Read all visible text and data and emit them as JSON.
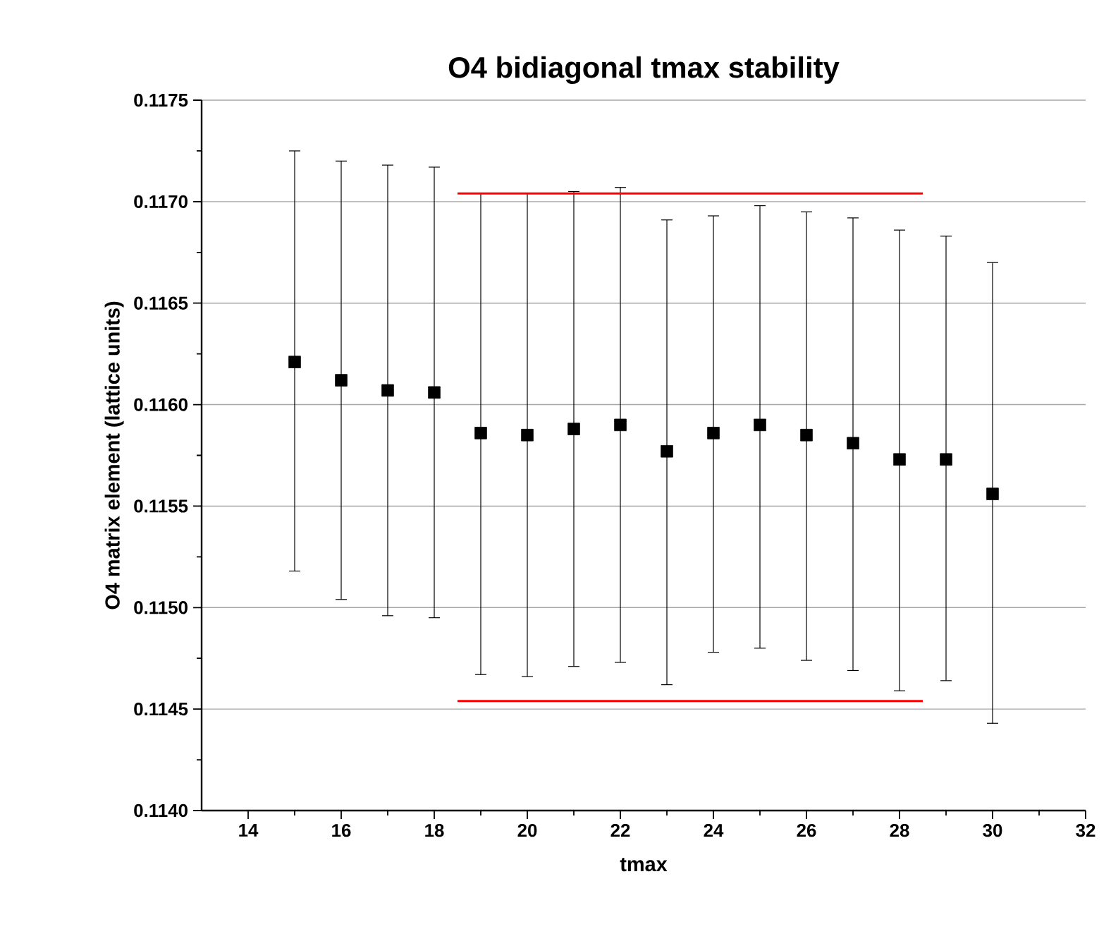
{
  "chart_data": {
    "type": "scatter",
    "title": "O4 bidiagonal tmax stability",
    "xlabel": "tmax",
    "ylabel": "O4 matrix element (lattice units)",
    "xlim": [
      13,
      32
    ],
    "xticks": [
      14,
      16,
      18,
      20,
      22,
      24,
      26,
      28,
      30,
      32
    ],
    "ylim": [
      0.114,
      0.1175
    ],
    "yticks": [
      {
        "value": 0.114,
        "label": "0.1140"
      },
      0.1145,
      {
        "value": 0.115,
        "label": "0.1150"
      },
      0.1155,
      {
        "value": 0.116,
        "label": "0.1160"
      },
      0.1165,
      {
        "value": 0.117,
        "label": "0.1170"
      },
      0.1175
    ],
    "grid": "y",
    "marker": "square",
    "series": [
      {
        "color": "#000000",
        "x": [
          15,
          16,
          17,
          18,
          19,
          20,
          21,
          22,
          23,
          24,
          25,
          26,
          27,
          28,
          29,
          30
        ],
        "values": [
          0.11621,
          0.11612,
          0.11607,
          0.11606,
          0.11586,
          0.11585,
          0.11588,
          0.1159,
          0.11577,
          0.11586,
          0.1159,
          0.11585,
          0.11581,
          0.11573,
          0.11573,
          0.11556
        ],
        "errors": [
          [
            0.11518,
            0.11725
          ],
          [
            0.11504,
            0.1172
          ],
          [
            0.11496,
            0.11718
          ],
          [
            0.11495,
            0.11717
          ],
          [
            0.11467,
            0.11704
          ],
          [
            0.11466,
            0.11704
          ],
          [
            0.11471,
            0.11705
          ],
          [
            0.11473,
            0.11707
          ],
          [
            0.11462,
            0.11691
          ],
          [
            0.11478,
            0.11693
          ],
          [
            0.1148,
            0.11698
          ],
          [
            0.11474,
            0.11695
          ],
          [
            0.11469,
            0.11692
          ],
          [
            0.11459,
            0.11686
          ],
          [
            0.11464,
            0.11683
          ],
          [
            0.11443,
            0.1167
          ]
        ]
      },
      {
        "type": "line",
        "color": "#ff0000",
        "marker": "none",
        "x": [
          18.5,
          28.5
        ],
        "values": [
          0.11704,
          0.11704
        ]
      },
      {
        "type": "line",
        "color": "#ff0000",
        "marker": "none",
        "x": [
          18.5,
          28.5
        ],
        "values": [
          0.11454,
          0.11454
        ]
      }
    ]
  }
}
